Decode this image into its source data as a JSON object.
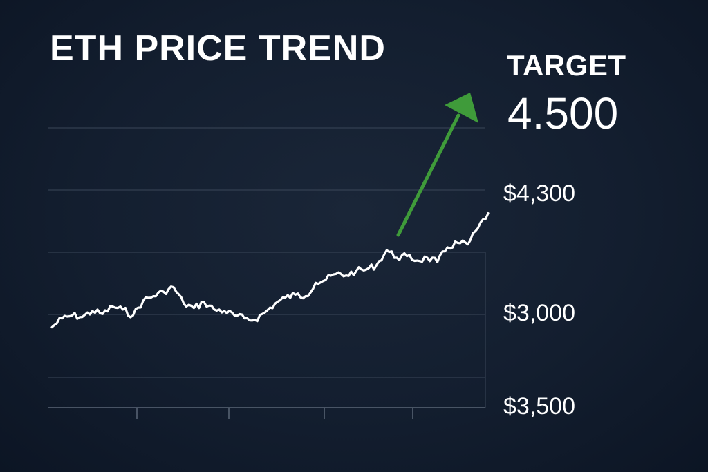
{
  "chart_data": {
    "type": "line",
    "title": "ETH PRICE TREND",
    "target": {
      "label": "TARGET",
      "value": "4.500"
    },
    "y_tick_labels": [
      "$4,300",
      "$3,000",
      "$3,500"
    ],
    "grid": true,
    "series": [
      {
        "color": "#ffffff",
        "values": [
          3380,
          3440,
          3460,
          3450,
          3490,
          3470,
          3520,
          3500,
          3460,
          3560,
          3590,
          3620,
          3650,
          3540,
          3510,
          3550,
          3500,
          3490,
          3460,
          3440,
          3430,
          3480,
          3540,
          3580,
          3600,
          3590,
          3680,
          3700,
          3740,
          3730,
          3760,
          3770,
          3800,
          3900,
          3850,
          3860,
          3830,
          3850,
          3820,
          3920,
          3950,
          3940,
          4050,
          4150
        ]
      }
    ],
    "annotation_arrow": {
      "color": "#3f9b3a",
      "direction": "up-right"
    }
  }
}
